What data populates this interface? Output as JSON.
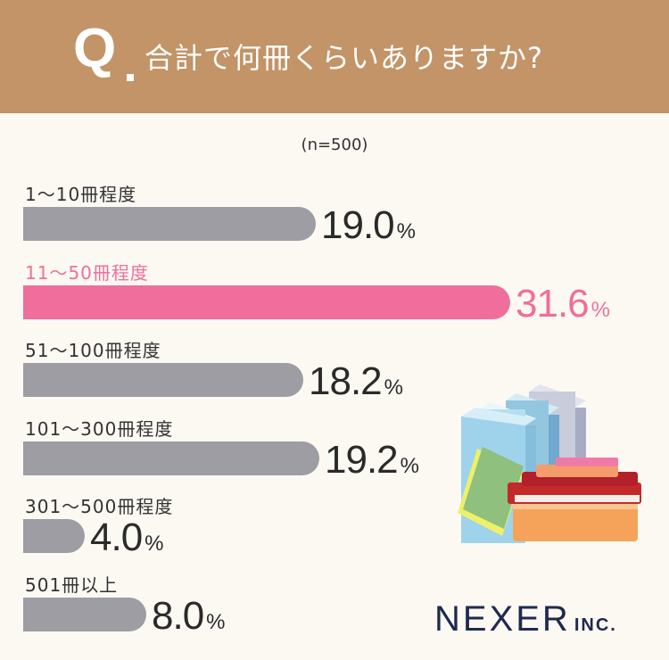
{
  "header": {
    "q_mark": "Q",
    "question": "合計で何冊くらいありますか?"
  },
  "sample": "(n=500)",
  "chart_data": {
    "type": "bar",
    "orientation": "horizontal",
    "categories": [
      "1〜10冊程度",
      "11〜50冊程度",
      "51〜100冊程度",
      "101〜300冊程度",
      "301〜500冊程度",
      "501冊以上"
    ],
    "values": [
      19.0,
      31.6,
      18.2,
      19.2,
      4.0,
      8.0
    ],
    "value_labels": [
      "19.0",
      "31.6",
      "18.2",
      "19.2",
      "4.0",
      "8.0"
    ],
    "unit": "%",
    "highlight_index": 1,
    "colors": {
      "default": "#9d9da3",
      "highlight": "#f06e9b"
    }
  },
  "colors": {
    "header_bg": "#c29467",
    "background": "#fcf9f3",
    "logo": "#1f2a4d"
  },
  "logo": {
    "name": "NEXER",
    "suffix": "INC."
  },
  "illustration": "books-stack-icon"
}
